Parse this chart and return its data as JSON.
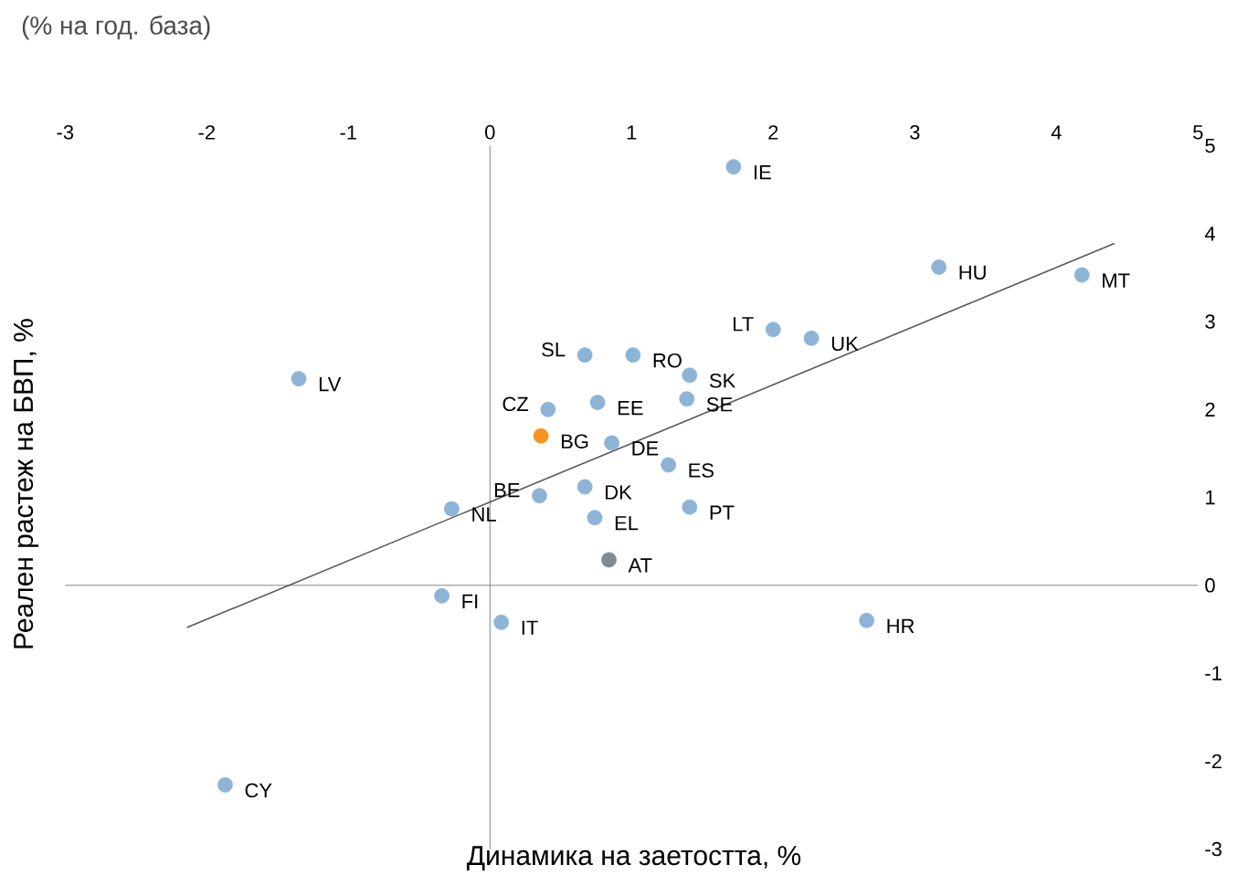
{
  "chart_data": {
    "type": "scatter",
    "xlabel": "Динамика на заетостта, %",
    "ylabel": "Реален растеж на БВП, %",
    "annotations": [
      "(% на год. база)",
      {
        "text": "IE",
        "x": 1.72,
        "y": 4.76
      },
      {
        "text": "HU",
        "x": 3.17,
        "y": 3.62
      },
      {
        "text": "MT",
        "x": 4.18,
        "y": 3.53
      },
      {
        "text": "LT",
        "x": 2.0,
        "y": 2.91
      },
      {
        "text": "UK",
        "x": 2.27,
        "y": 2.81
      },
      {
        "text": "SL",
        "x": 0.67,
        "y": 2.62
      },
      {
        "text": "RO",
        "x": 1.01,
        "y": 2.62
      },
      {
        "text": "SK",
        "x": 1.41,
        "y": 2.39
      },
      {
        "text": "SE",
        "x": 1.39,
        "y": 2.12
      },
      {
        "text": "EE",
        "x": 0.76,
        "y": 2.08
      },
      {
        "text": "CZ",
        "x": 0.41,
        "y": 2.0
      },
      {
        "text": "BG",
        "x": 0.36,
        "y": 1.7
      },
      {
        "text": "DE",
        "x": 0.86,
        "y": 1.62
      },
      {
        "text": "ES",
        "x": 1.26,
        "y": 1.37
      },
      {
        "text": "DK",
        "x": 0.67,
        "y": 1.12
      },
      {
        "text": "BE",
        "x": 0.35,
        "y": 1.02
      },
      {
        "text": "NL",
        "x": -0.27,
        "y": 0.87
      },
      {
        "text": "EL",
        "x": 0.74,
        "y": 0.77
      },
      {
        "text": "PT",
        "x": 1.41,
        "y": 0.89
      },
      {
        "text": "AT",
        "x": 0.84,
        "y": 0.29
      },
      {
        "text": "FI",
        "x": -0.34,
        "y": -0.12
      },
      {
        "text": "IT",
        "x": 0.08,
        "y": -0.42
      },
      {
        "text": "HR",
        "x": 2.66,
        "y": -0.4
      },
      {
        "text": "LV",
        "x": -1.35,
        "y": 2.35
      },
      {
        "text": "CY",
        "x": -1.87,
        "y": -2.27
      }
    ],
    "series": [
      {
        "marker": "circle",
        "x": [
          1.72,
          3.17,
          4.18,
          2.0,
          2.27,
          0.67,
          1.01,
          1.41,
          1.39,
          0.76,
          0.41,
          0.36,
          0.86,
          1.26,
          0.67,
          0.35,
          -0.27,
          0.74,
          1.41,
          0.84,
          -0.34,
          0.08,
          2.66,
          -1.35,
          -1.87
        ],
        "values": [
          4.76,
          3.62,
          3.53,
          2.91,
          2.81,
          2.62,
          2.62,
          2.39,
          2.12,
          2.08,
          2.0,
          1.7,
          1.62,
          1.37,
          1.12,
          1.02,
          0.87,
          0.77,
          0.89,
          0.29,
          -0.12,
          -0.42,
          -0.4,
          2.35,
          -2.27
        ],
        "colors": [
          "#8db4d6",
          "#8db4d6",
          "#8db4d6",
          "#8db4d6",
          "#8db4d6",
          "#8db4d6",
          "#8db4d6",
          "#8db4d6",
          "#8db4d6",
          "#8db4d6",
          "#8db4d6",
          "#f7931e",
          "#8db4d6",
          "#8db4d6",
          "#8db4d6",
          "#8db4d6",
          "#8db4d6",
          "#8db4d6",
          "#8db4d6",
          "#7f8c96",
          "#8db4d6",
          "#8db4d6",
          "#8db4d6",
          "#8db4d6",
          "#8db4d6"
        ]
      },
      {
        "type": "line",
        "marker": "none",
        "color": "#595959",
        "x": [
          -2.14,
          4.41
        ],
        "values": [
          -0.48,
          3.89
        ]
      }
    ],
    "xlim": [
      -3,
      5
    ],
    "ylim": [
      -3,
      5
    ],
    "xticks": [
      -3,
      -2,
      -1,
      0,
      1,
      2,
      3,
      4,
      5
    ],
    "yticks": [
      -3,
      -2,
      -1,
      0,
      1,
      2,
      3,
      4,
      5
    ]
  }
}
